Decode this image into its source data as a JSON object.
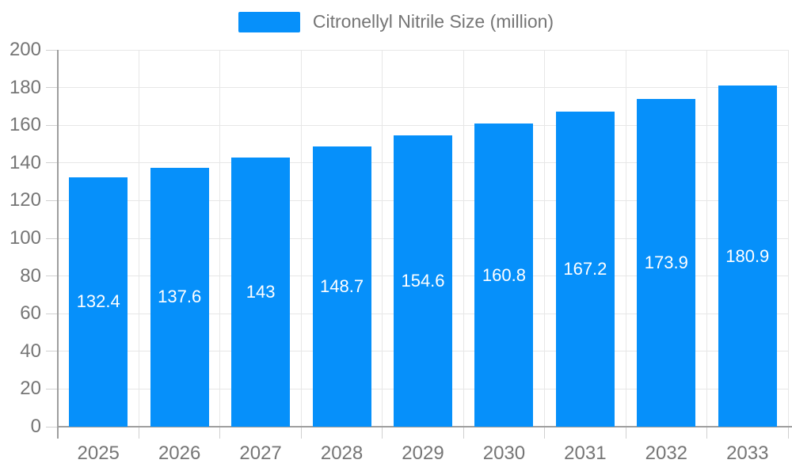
{
  "legend": {
    "label": "Citronellyl Nitrile Size (million)"
  },
  "chart_data": {
    "type": "bar",
    "title": "",
    "categories": [
      "2025",
      "2026",
      "2027",
      "2028",
      "2029",
      "2030",
      "2031",
      "2032",
      "2033"
    ],
    "series": [
      {
        "name": "Citronellyl Nitrile Size (million)",
        "values": [
          132.4,
          137.6,
          143,
          148.7,
          154.6,
          160.8,
          167.2,
          173.9,
          180.9
        ]
      }
    ],
    "xlabel": "",
    "ylabel": "",
    "ylim": [
      0,
      200
    ],
    "ytick_step": 20,
    "ytick_labels": [
      "0",
      "20",
      "40",
      "60",
      "80",
      "100",
      "120",
      "140",
      "160",
      "180",
      "200"
    ],
    "grid": true,
    "legend_position": "top-center",
    "colors": {
      "bar": "#0690fa",
      "bar_label": "#ffffff",
      "axis_text": "#757575",
      "grid": "#e7e7e7",
      "axis_line": "#9e9e9e",
      "tick": "#d0d0d0"
    }
  }
}
